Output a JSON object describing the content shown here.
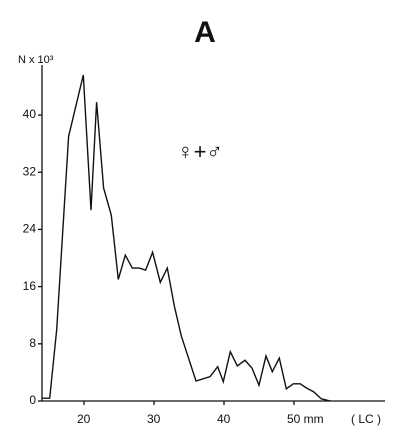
{
  "chart_data": {
    "type": "line",
    "title": "A",
    "y_label": "N x 10³",
    "x_label": "( LC )",
    "annotation": "♀+♂",
    "x": [
      14.1,
      15.1,
      16.1,
      17.8,
      19.9,
      21,
      21.8,
      22.8,
      23.9,
      24.9,
      25.9,
      26.9,
      27.9,
      28.8,
      29.8,
      30.9,
      31.9,
      32.9,
      33.9,
      36,
      38,
      39.1,
      39.9,
      40.9,
      41.9,
      43,
      44,
      45,
      46,
      46.9,
      47.9,
      48.9,
      49.9,
      50.9,
      51.8,
      52.8,
      53.9,
      55.2
    ],
    "series": [
      {
        "name": null,
        "color": "#111111",
        "values": [
          0.4,
          0.4,
          10,
          37,
          45.6,
          26.7,
          41.8,
          29.8,
          26,
          17,
          20.4,
          18.6,
          18.6,
          18.3,
          20.8,
          16.6,
          18.6,
          13.3,
          9.1,
          2.8,
          3.4,
          4.8,
          2.7,
          6.9,
          4.9,
          5.7,
          4.6,
          2.2,
          6.3,
          4.1,
          6,
          1.7,
          2.4,
          2.4,
          1.8,
          1.3,
          0.3,
          0
        ]
      }
    ],
    "xlim": [
      14,
      63
    ],
    "ylim": [
      0,
      47
    ],
    "xticks": [
      20,
      30,
      40,
      {
        "value": 50,
        "label": "50 mm"
      }
    ],
    "yticks": [
      0,
      8,
      16,
      24,
      32,
      40
    ]
  }
}
